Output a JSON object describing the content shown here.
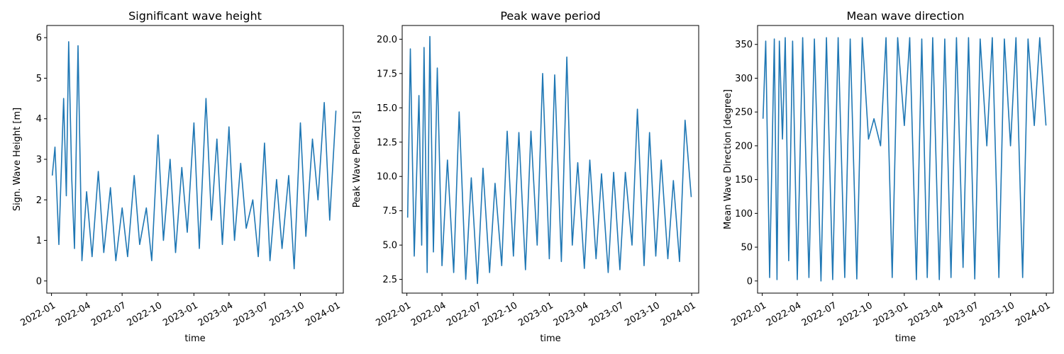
{
  "chart_data": [
    {
      "type": "line",
      "title": "Significant wave height",
      "xlabel": "time",
      "ylabel": "Sign. Wave Height [m]",
      "x_ticks": [
        "2022-01",
        "2022-04",
        "2022-07",
        "2022-10",
        "2023-01",
        "2023-04",
        "2023-07",
        "2023-10",
        "2024-01"
      ],
      "y_ticks": [
        "0",
        "1",
        "2",
        "3",
        "4",
        "5",
        "6"
      ],
      "xlim": [
        "2021-12-20",
        "2024-01-19"
      ],
      "ylim": [
        -0.3,
        6.3
      ],
      "color": "#1f77b4",
      "grid": false,
      "series": [
        {
          "x": [
            "2022-01-03",
            "2022-01-10",
            "2022-01-20",
            "2022-02-01",
            "2022-02-08",
            "2022-02-14",
            "2022-02-22",
            "2022-03-01",
            "2022-03-10",
            "2022-03-20",
            "2022-04-01",
            "2022-04-15",
            "2022-05-01",
            "2022-05-15",
            "2022-06-01",
            "2022-06-15",
            "2022-07-01",
            "2022-07-15",
            "2022-08-01",
            "2022-08-15",
            "2022-09-01",
            "2022-09-15",
            "2022-10-01",
            "2022-10-15",
            "2022-11-01",
            "2022-11-15",
            "2022-12-01",
            "2022-12-15",
            "2023-01-01",
            "2023-01-15",
            "2023-02-01",
            "2023-02-15",
            "2023-03-01",
            "2023-03-15",
            "2023-04-01",
            "2023-04-15",
            "2023-05-01",
            "2023-05-15",
            "2023-06-01",
            "2023-06-15",
            "2023-07-01",
            "2023-07-15",
            "2023-08-01",
            "2023-08-15",
            "2023-09-01",
            "2023-09-15",
            "2023-10-01",
            "2023-10-15",
            "2023-11-01",
            "2023-11-15",
            "2023-12-01",
            "2023-12-15",
            "2023-12-31"
          ],
          "values": [
            2.6,
            3.3,
            0.9,
            4.5,
            2.1,
            5.9,
            2.5,
            0.8,
            5.8,
            0.5,
            2.2,
            0.6,
            2.7,
            0.7,
            2.3,
            0.5,
            1.8,
            0.6,
            2.6,
            0.9,
            1.8,
            0.5,
            3.6,
            1.0,
            3.0,
            0.7,
            2.8,
            1.2,
            3.9,
            0.8,
            4.5,
            1.5,
            3.5,
            0.9,
            3.8,
            1.0,
            2.9,
            1.3,
            2.0,
            0.6,
            3.4,
            0.5,
            2.5,
            0.8,
            2.6,
            0.3,
            3.9,
            1.1,
            3.5,
            2.0,
            4.4,
            1.5,
            4.2
          ]
        }
      ]
    },
    {
      "type": "line",
      "title": "Peak wave period",
      "xlabel": "time",
      "ylabel": "Peak Wave Period [s]",
      "x_ticks": [
        "2022-01",
        "2022-04",
        "2022-07",
        "2022-10",
        "2023-01",
        "2023-04",
        "2023-07",
        "2023-10",
        "2024-01"
      ],
      "y_ticks": [
        "2.5",
        "5.0",
        "7.5",
        "10.0",
        "12.5",
        "15.0",
        "17.5",
        "20.0"
      ],
      "xlim": [
        "2021-12-20",
        "2024-01-19"
      ],
      "ylim": [
        1.5,
        21.0
      ],
      "color": "#1f77b4",
      "grid": false,
      "series": [
        {
          "x": [
            "2022-01-03",
            "2022-01-10",
            "2022-01-20",
            "2022-02-01",
            "2022-02-08",
            "2022-02-14",
            "2022-02-22",
            "2022-03-01",
            "2022-03-10",
            "2022-03-20",
            "2022-04-01",
            "2022-04-15",
            "2022-05-01",
            "2022-05-15",
            "2022-06-01",
            "2022-06-15",
            "2022-07-01",
            "2022-07-15",
            "2022-08-01",
            "2022-08-15",
            "2022-09-01",
            "2022-09-15",
            "2022-10-01",
            "2022-10-15",
            "2022-11-01",
            "2022-11-15",
            "2022-12-01",
            "2022-12-15",
            "2023-01-01",
            "2023-01-15",
            "2023-02-01",
            "2023-02-15",
            "2023-03-01",
            "2023-03-15",
            "2023-04-01",
            "2023-04-15",
            "2023-05-01",
            "2023-05-15",
            "2023-06-01",
            "2023-06-15",
            "2023-07-01",
            "2023-07-15",
            "2023-08-01",
            "2023-08-15",
            "2023-09-01",
            "2023-09-15",
            "2023-10-01",
            "2023-10-15",
            "2023-11-01",
            "2023-11-15",
            "2023-12-01",
            "2023-12-15",
            "2023-12-31"
          ],
          "values": [
            7.0,
            19.3,
            4.2,
            15.9,
            5.0,
            19.4,
            3.0,
            20.2,
            4.5,
            17.9,
            3.5,
            11.2,
            3.0,
            14.7,
            2.5,
            9.9,
            2.2,
            10.6,
            3.0,
            9.5,
            3.5,
            13.3,
            4.2,
            13.2,
            3.2,
            13.3,
            5.0,
            17.5,
            4.0,
            17.4,
            3.8,
            18.7,
            5.0,
            11.0,
            3.3,
            11.2,
            4.0,
            10.2,
            3.0,
            10.3,
            3.2,
            10.3,
            5.0,
            14.9,
            3.5,
            13.2,
            4.2,
            11.2,
            4.0,
            9.7,
            3.8,
            14.1,
            8.5
          ]
        }
      ]
    },
    {
      "type": "line",
      "title": "Mean wave direction",
      "xlabel": "time",
      "ylabel": "Mean Wave Direction [degree]",
      "x_ticks": [
        "2022-01",
        "2022-04",
        "2022-07",
        "2022-10",
        "2023-01",
        "2023-04",
        "2023-07",
        "2023-10",
        "2024-01"
      ],
      "y_ticks": [
        "0",
        "50",
        "100",
        "150",
        "200",
        "250",
        "300",
        "350"
      ],
      "xlim": [
        "2021-12-20",
        "2024-01-19"
      ],
      "ylim": [
        -18,
        378
      ],
      "color": "#1f77b4",
      "grid": false,
      "series": [
        {
          "x": [
            "2022-01-03",
            "2022-01-10",
            "2022-01-20",
            "2022-02-01",
            "2022-02-08",
            "2022-02-14",
            "2022-02-22",
            "2022-03-01",
            "2022-03-10",
            "2022-03-20",
            "2022-04-01",
            "2022-04-15",
            "2022-05-01",
            "2022-05-15",
            "2022-06-01",
            "2022-06-15",
            "2022-07-01",
            "2022-07-15",
            "2022-08-01",
            "2022-08-15",
            "2022-09-01",
            "2022-09-15",
            "2022-10-01",
            "2022-10-15",
            "2022-11-01",
            "2022-11-15",
            "2022-12-01",
            "2022-12-15",
            "2023-01-01",
            "2023-01-15",
            "2023-02-01",
            "2023-02-15",
            "2023-03-01",
            "2023-03-15",
            "2023-04-01",
            "2023-04-15",
            "2023-05-01",
            "2023-05-15",
            "2023-06-01",
            "2023-06-15",
            "2023-07-01",
            "2023-07-15",
            "2023-08-01",
            "2023-08-15",
            "2023-09-01",
            "2023-09-15",
            "2023-10-01",
            "2023-10-15",
            "2023-11-01",
            "2023-11-15",
            "2023-12-01",
            "2023-12-15",
            "2023-12-31"
          ],
          "values": [
            240,
            355,
            5,
            358,
            2,
            355,
            210,
            360,
            30,
            355,
            2,
            360,
            5,
            358,
            0,
            360,
            2,
            360,
            5,
            358,
            3,
            360,
            210,
            240,
            200,
            360,
            5,
            360,
            230,
            360,
            2,
            358,
            5,
            360,
            2,
            358,
            5,
            360,
            20,
            360,
            3,
            358,
            200,
            360,
            5,
            358,
            200,
            360,
            5,
            358,
            230,
            360,
            230
          ]
        }
      ]
    }
  ]
}
